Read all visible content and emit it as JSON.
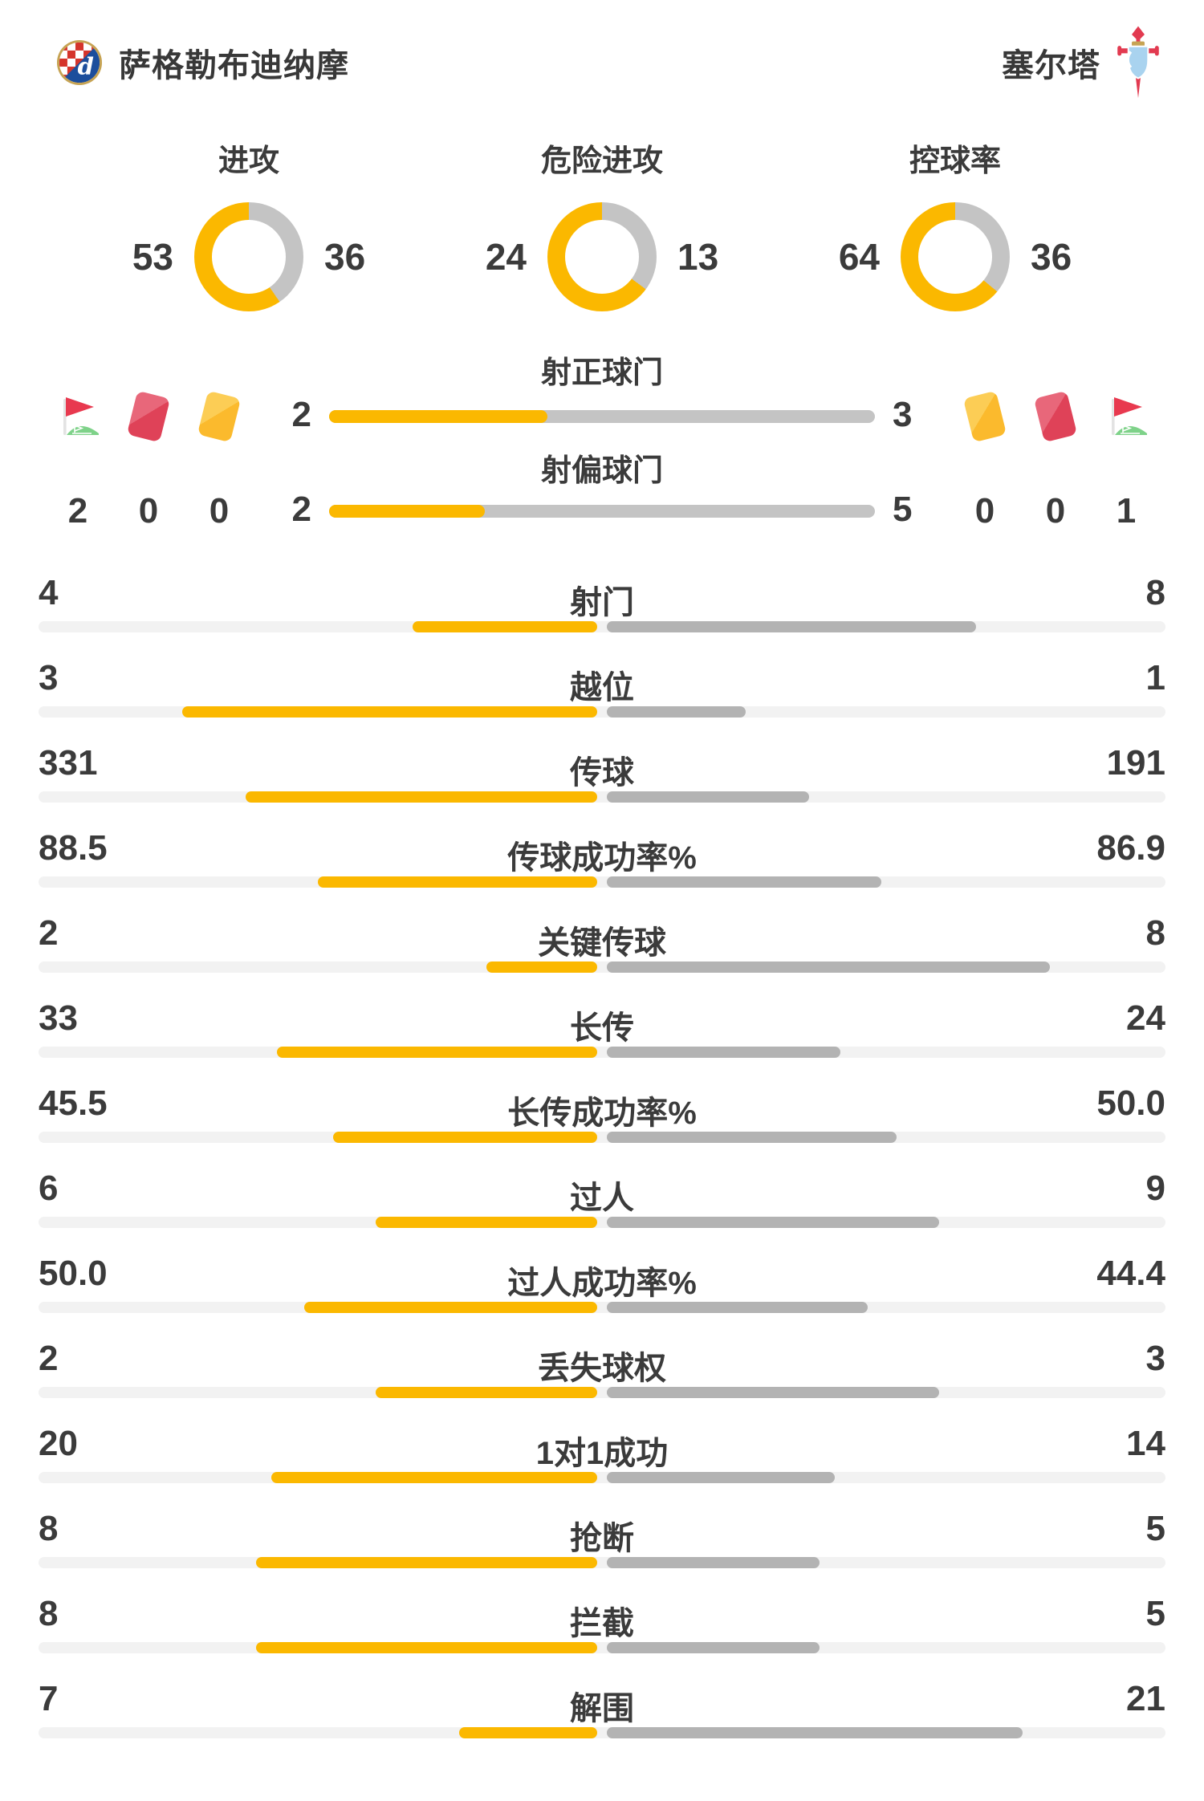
{
  "header": {
    "home_name": "萨格勒布迪纳摩",
    "away_name": "塞尔塔"
  },
  "colors": {
    "home_accent": "#fbb800",
    "away_donut_gray": "#c4c4c4",
    "away_bar_gray": "#b3b3b3",
    "track_gray": "#f2f2f2",
    "text": "#3b3b3b",
    "red_card": "#df4258",
    "yellow_card": "#fbba2d",
    "flag_red": "#e8394f",
    "grass_green": "#7ed289"
  },
  "chart_data": {
    "type": "comparison-stats",
    "teams": [
      "萨格勒布迪纳摩",
      "塞尔塔"
    ],
    "legend_note": "left/home values shown in yellow, right/away values in gray",
    "donuts": [
      {
        "label": "进攻",
        "home": 53,
        "away": 36
      },
      {
        "label": "危险进攻",
        "home": 24,
        "away": 13
      },
      {
        "label": "控球率",
        "home": 64,
        "away": 36
      }
    ],
    "shot_bars": [
      {
        "label": "射正球门",
        "home": 2,
        "away": 3
      },
      {
        "label": "射偏球门",
        "home": 2,
        "away": 5
      }
    ],
    "discipline": {
      "home": {
        "icons": [
          "corner-flag",
          "red-card",
          "yellow-card"
        ],
        "values": [
          "2",
          "0",
          "0"
        ]
      },
      "away": {
        "icons": [
          "yellow-card",
          "red-card",
          "corner-flag"
        ],
        "values": [
          "0",
          "0",
          "1"
        ]
      }
    },
    "stats": [
      {
        "label": "射门",
        "home": "4",
        "away": "8"
      },
      {
        "label": "越位",
        "home": "3",
        "away": "1"
      },
      {
        "label": "传球",
        "home": "331",
        "away": "191"
      },
      {
        "label": "传球成功率%",
        "home": "88.5",
        "away": "86.9"
      },
      {
        "label": "关键传球",
        "home": "2",
        "away": "8"
      },
      {
        "label": "长传",
        "home": "33",
        "away": "24"
      },
      {
        "label": "长传成功率%",
        "home": "45.5",
        "away": "50.0"
      },
      {
        "label": "过人",
        "home": "6",
        "away": "9"
      },
      {
        "label": "过人成功率%",
        "home": "50.0",
        "away": "44.4"
      },
      {
        "label": "丢失球权",
        "home": "2",
        "away": "3"
      },
      {
        "label": "1对1成功",
        "home": "20",
        "away": "14"
      },
      {
        "label": "抢断",
        "home": "8",
        "away": "5"
      },
      {
        "label": "拦截",
        "home": "8",
        "away": "5"
      },
      {
        "label": "解围",
        "home": "7",
        "away": "21"
      }
    ]
  }
}
